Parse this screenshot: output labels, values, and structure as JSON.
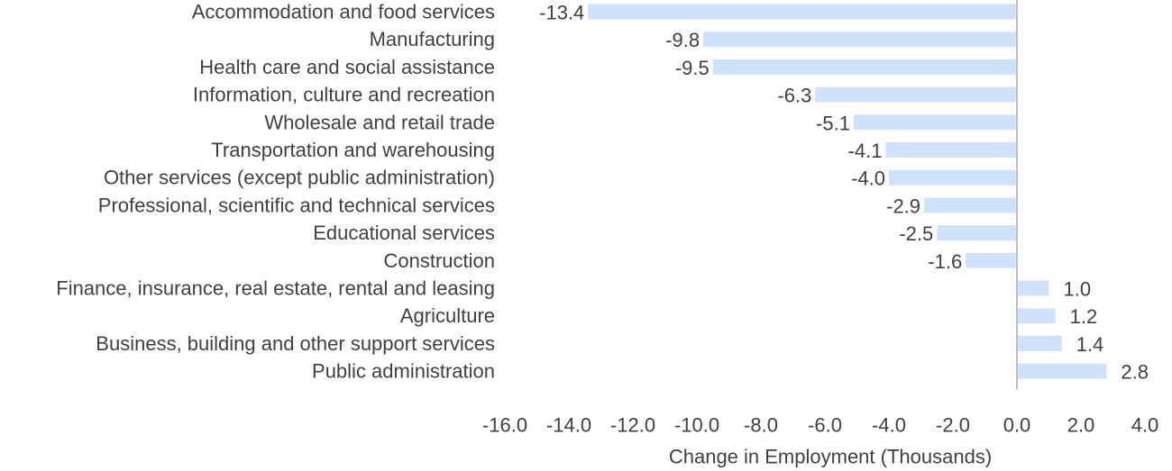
{
  "chart_data": {
    "type": "bar",
    "orientation": "horizontal",
    "title": "",
    "xlabel": "Change in Employment (Thousands)",
    "ylabel": "",
    "xlim": [
      -16.0,
      4.0
    ],
    "xticks": [
      -16.0,
      -14.0,
      -12.0,
      -10.0,
      -8.0,
      -6.0,
      -4.0,
      -2.0,
      0.0,
      2.0,
      4.0
    ],
    "xtick_labels": [
      "-16.0",
      "-14.0",
      "-12.0",
      "-10.0",
      "-8.0",
      "-6.0",
      "-4.0",
      "-2.0",
      "0.0",
      "2.0",
      "4.0"
    ],
    "grid": false,
    "legend": "none",
    "bar_color": "#cfe2fb",
    "zero_line_color": "#bfbfbf",
    "categories": [
      "Accommodation and food services",
      "Manufacturing",
      "Health care and social assistance",
      "Information, culture and recreation",
      "Wholesale and retail trade",
      "Transportation and warehousing",
      "Other services (except public administration)",
      "Professional, scientific and technical services",
      "Educational services",
      "Construction",
      "Finance, insurance, real estate, rental and leasing",
      "Agriculture",
      "Business, building and other support services",
      "Public administration"
    ],
    "values": [
      -13.4,
      -9.8,
      -9.5,
      -6.3,
      -5.1,
      -4.1,
      -4.0,
      -2.9,
      -2.5,
      -1.6,
      1.0,
      1.2,
      1.4,
      2.8
    ],
    "value_labels": [
      "-13.4",
      "-9.8",
      "-9.5",
      "-6.3",
      "-5.1",
      "-4.1",
      "-4.0",
      "-2.9",
      "-2.5",
      "-1.6",
      "1.0",
      "1.2",
      "1.4",
      "2.8"
    ]
  }
}
